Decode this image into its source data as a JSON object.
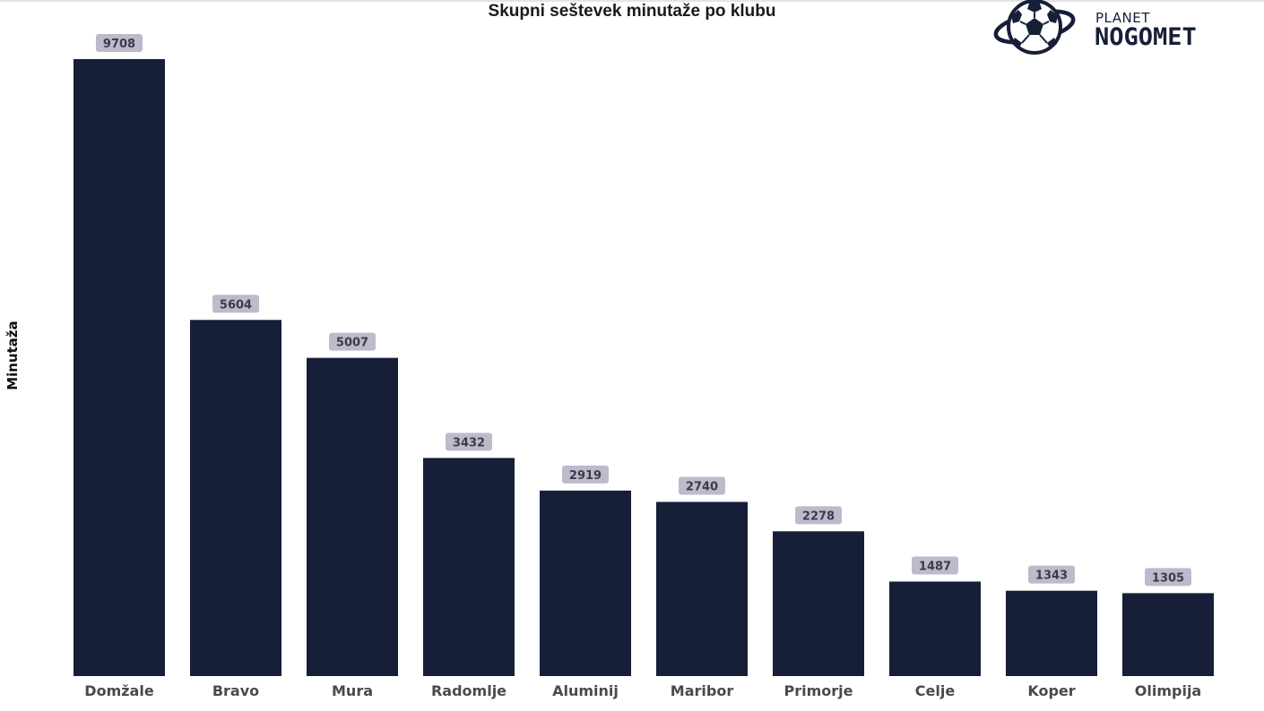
{
  "chart_data": {
    "type": "bar",
    "title": "Skupni seštevek minutaže po klubu",
    "xlabel": "",
    "ylabel": "Minutaža",
    "categories": [
      "Domžale",
      "Bravo",
      "Mura",
      "Radomlje",
      "Aluminij",
      "Maribor",
      "Primorje",
      "Celje",
      "Koper",
      "Olimpija"
    ],
    "values": [
      9708,
      5604,
      5007,
      3432,
      2919,
      2740,
      2278,
      1487,
      1343,
      1305
    ],
    "ylim": [
      0,
      9708
    ],
    "grid": false,
    "legend": "none",
    "bar_color": "#161f37",
    "label_bg_color": "#bcbbcc"
  },
  "logo": {
    "name": "planet-nogomet-logo",
    "small_text": "PLANET",
    "big_text": "NOGOMET",
    "color": "#161f37"
  }
}
